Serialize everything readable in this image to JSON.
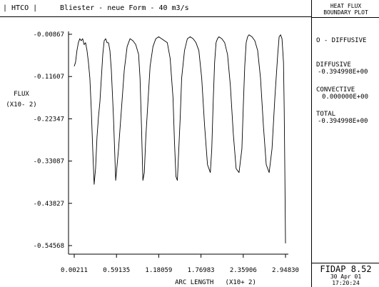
{
  "header": {
    "left_label": "| HTCO |",
    "title": "Bliester - neue Form - 40 m3/s"
  },
  "sidebar": {
    "title_line1": "HEAT FLUX",
    "title_line2": "BOUNDARY PLOT",
    "legend_item": "O - DIFFUSIVE",
    "diffusive_label": "DIFFUSIVE",
    "diffusive_value": "-0.394998E+00",
    "convective_label": "CONVECTIVE",
    "convective_value": "0.000000E+00",
    "total_label": "TOTAL",
    "total_value": "-0.394998E+00",
    "footer_app": "FIDAP 8.52",
    "footer_date": "30 Apr 01",
    "footer_time": "17:20:24"
  },
  "chart_data": {
    "type": "line",
    "title": "Bliester - neue Form - 40 m3/s",
    "xlabel": "ARC LENGTH   (X10+ 2)",
    "ylabel_line1": "FLUX",
    "ylabel_line2": "(X10- 2)",
    "xlim": [
      0.00211,
      2.9483
    ],
    "ylim": [
      -0.54568,
      -0.00867
    ],
    "x_ticks": [
      0.00211,
      0.59135,
      1.18059,
      1.76983,
      2.35906,
      2.9483
    ],
    "x_tick_labels": [
      "0.00211",
      "0.59135",
      "1.18059",
      "1.76983",
      "2.35906",
      "2.94830"
    ],
    "y_ticks": [
      -0.00867,
      -0.11607,
      -0.22347,
      -0.33087,
      -0.43827,
      -0.54568
    ],
    "y_tick_labels": [
      "-0.00867",
      "-0.11607",
      "-0.22347",
      "-0.33087",
      "-0.43827",
      "-0.54568"
    ],
    "grid": false,
    "series": [
      {
        "x": [
          0.00211,
          0.02,
          0.04,
          0.06,
          0.08,
          0.1,
          0.12,
          0.14,
          0.16,
          0.18,
          0.2,
          0.22,
          0.24,
          0.26,
          0.28,
          0.3,
          0.32,
          0.34,
          0.36,
          0.38,
          0.4,
          0.42,
          0.44,
          0.46,
          0.48,
          0.5,
          0.52,
          0.55,
          0.58,
          0.62,
          0.66,
          0.7,
          0.74,
          0.78,
          0.82,
          0.86,
          0.9,
          0.92,
          0.94,
          0.96,
          0.98,
          1.0,
          1.03,
          1.06,
          1.1,
          1.14,
          1.18,
          1.22,
          1.26,
          1.3,
          1.34,
          1.38,
          1.4,
          1.42,
          1.44,
          1.46,
          1.48,
          1.5,
          1.54,
          1.58,
          1.62,
          1.66,
          1.7,
          1.74,
          1.78,
          1.82,
          1.86,
          1.9,
          1.92,
          1.94,
          1.96,
          1.98,
          2.0,
          2.02,
          2.06,
          2.1,
          2.14,
          2.18,
          2.22,
          2.26,
          2.3,
          2.34,
          2.36,
          2.38,
          2.4,
          2.42,
          2.44,
          2.48,
          2.52,
          2.56,
          2.6,
          2.64,
          2.68,
          2.72,
          2.76,
          2.8,
          2.84,
          2.86,
          2.88,
          2.9,
          2.92,
          2.93,
          2.94,
          2.9483
        ],
        "y": [
          -0.09,
          -0.08,
          -0.05,
          -0.03,
          -0.02,
          -0.025,
          -0.02,
          -0.035,
          -0.03,
          -0.05,
          -0.08,
          -0.12,
          -0.2,
          -0.3,
          -0.39,
          -0.35,
          -0.27,
          -0.22,
          -0.18,
          -0.12,
          -0.06,
          -0.025,
          -0.02,
          -0.03,
          -0.03,
          -0.05,
          -0.1,
          -0.22,
          -0.38,
          -0.3,
          -0.2,
          -0.1,
          -0.04,
          -0.02,
          -0.025,
          -0.035,
          -0.06,
          -0.12,
          -0.24,
          -0.38,
          -0.36,
          -0.27,
          -0.18,
          -0.09,
          -0.04,
          -0.02,
          -0.015,
          -0.02,
          -0.025,
          -0.03,
          -0.07,
          -0.17,
          -0.28,
          -0.37,
          -0.38,
          -0.3,
          -0.22,
          -0.12,
          -0.05,
          -0.02,
          -0.015,
          -0.02,
          -0.03,
          -0.05,
          -0.12,
          -0.24,
          -0.34,
          -0.36,
          -0.3,
          -0.18,
          -0.08,
          -0.03,
          -0.02,
          -0.015,
          -0.02,
          -0.03,
          -0.06,
          -0.14,
          -0.26,
          -0.35,
          -0.36,
          -0.3,
          -0.19,
          -0.09,
          -0.03,
          -0.015,
          -0.01,
          -0.015,
          -0.025,
          -0.05,
          -0.12,
          -0.24,
          -0.34,
          -0.36,
          -0.3,
          -0.17,
          -0.06,
          -0.015,
          -0.01,
          -0.02,
          -0.08,
          -0.2,
          -0.38,
          -0.54
        ]
      }
    ]
  }
}
